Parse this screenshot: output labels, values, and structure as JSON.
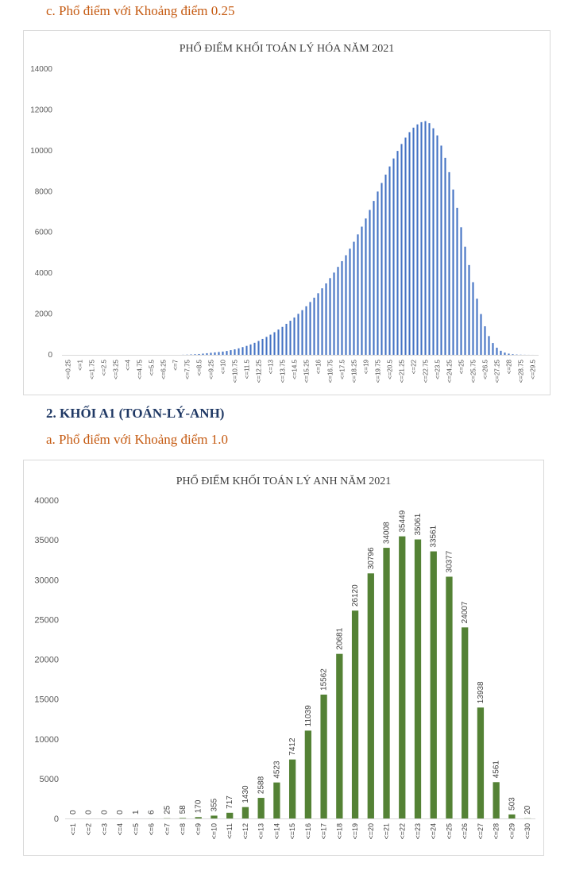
{
  "headings": {
    "c_title": "c. Phổ điểm với Khoảng điểm 0.25",
    "section_2": "2. KHỐI A1 (TOÁN-LÝ-ANH)",
    "a_title": "a. Phổ điểm với Khoảng điểm 1.0"
  },
  "colors": {
    "chart1_bar": "#4472c4",
    "chart2_bar": "#548235"
  },
  "chart_data": [
    {
      "type": "bar",
      "title": "PHỔ ĐIỂM KHỐI TOÁN LÝ HÓA NĂM 2021",
      "ylim": [
        0,
        14000
      ],
      "yticks": [
        0,
        2000,
        4000,
        6000,
        8000,
        10000,
        12000,
        14000
      ],
      "xtick_labels": [
        "<=0.25",
        "<=1",
        "<=1.75",
        "<=2.5",
        "<=3.25",
        "<=4",
        "<=4.75",
        "<=5.5",
        "<=6.25",
        "<=7",
        "<=7.75",
        "<=8.5",
        "<=9.25",
        "<=10",
        "<=10.75",
        "<=11.5",
        "<=12.25",
        "<=13",
        "<=13.75",
        "<=14.5",
        "<=15.25",
        "<=16",
        "<=16.75",
        "<=17.5",
        "<=18.25",
        "<=19",
        "<=19.75",
        "<=20.5",
        "<=21.25",
        "<=22",
        "<=22.75",
        "<=23.5",
        "<=24.25",
        "<=25",
        "<=25.75",
        "<=26.5",
        "<=27.25",
        "<=28",
        "<=28.75",
        "<=29.5"
      ],
      "categories": [
        "<=0.25",
        "<=0.5",
        "<=0.75",
        "<=1",
        "<=1.25",
        "<=1.5",
        "<=1.75",
        "<=2",
        "<=2.25",
        "<=2.5",
        "<=2.75",
        "<=3",
        "<=3.25",
        "<=3.5",
        "<=3.75",
        "<=4",
        "<=4.25",
        "<=4.5",
        "<=4.75",
        "<=5",
        "<=5.25",
        "<=5.5",
        "<=5.75",
        "<=6",
        "<=6.25",
        "<=6.5",
        "<=6.75",
        "<=7",
        "<=7.25",
        "<=7.5",
        "<=7.75",
        "<=8",
        "<=8.25",
        "<=8.5",
        "<=8.75",
        "<=9",
        "<=9.25",
        "<=9.5",
        "<=9.75",
        "<=10",
        "<=10.25",
        "<=10.5",
        "<=10.75",
        "<=11",
        "<=11.25",
        "<=11.5",
        "<=11.75",
        "<=12",
        "<=12.25",
        "<=12.5",
        "<=12.75",
        "<=13",
        "<=13.25",
        "<=13.5",
        "<=13.75",
        "<=14",
        "<=14.25",
        "<=14.5",
        "<=14.75",
        "<=15",
        "<=15.25",
        "<=15.5",
        "<=15.75",
        "<=16",
        "<=16.25",
        "<=16.5",
        "<=16.75",
        "<=17",
        "<=17.25",
        "<=17.5",
        "<=17.75",
        "<=18",
        "<=18.25",
        "<=18.5",
        "<=18.75",
        "<=19",
        "<=19.25",
        "<=19.5",
        "<=19.75",
        "<=20",
        "<=20.25",
        "<=20.5",
        "<=20.75",
        "<=21",
        "<=21.25",
        "<=21.5",
        "<=21.75",
        "<=22",
        "<=22.25",
        "<=22.5",
        "<=22.75",
        "<=23",
        "<=23.25",
        "<=23.5",
        "<=23.75",
        "<=24",
        "<=24.25",
        "<=24.5",
        "<=24.75",
        "<=25",
        "<=25.25",
        "<=25.5",
        "<=25.75",
        "<=26",
        "<=26.25",
        "<=26.5",
        "<=26.75",
        "<=27",
        "<=27.25",
        "<=27.5",
        "<=27.75",
        "<=28",
        "<=28.25",
        "<=28.5",
        "<=28.75",
        "<=29",
        "<=29.25",
        "<=29.5",
        "<=29.75",
        "<=30"
      ],
      "values": [
        0,
        0,
        0,
        0,
        0,
        0,
        0,
        0,
        0,
        0,
        0,
        0,
        0,
        0,
        0,
        0,
        0,
        0,
        0,
        0,
        0,
        0,
        0,
        0,
        0,
        0,
        0,
        0,
        0,
        0,
        5,
        10,
        20,
        30,
        40,
        60,
        80,
        100,
        120,
        140,
        160,
        190,
        230,
        270,
        320,
        380,
        440,
        510,
        590,
        680,
        780,
        880,
        990,
        1110,
        1240,
        1370,
        1520,
        1670,
        1830,
        2010,
        2190,
        2380,
        2590,
        2800,
        3020,
        3260,
        3500,
        3760,
        4030,
        4310,
        4590,
        4880,
        5200,
        5540,
        5900,
        6280,
        6680,
        7100,
        7540,
        8000,
        8420,
        8830,
        9230,
        9620,
        9990,
        10330,
        10640,
        10910,
        11130,
        11290,
        11400,
        11450,
        11350,
        11100,
        10750,
        10250,
        9650,
        8950,
        8100,
        7200,
        6250,
        5300,
        4400,
        3560,
        2750,
        2000,
        1400,
        920,
        580,
        350,
        200,
        110,
        60,
        30,
        15,
        8,
        4,
        2,
        1,
        0
      ]
    },
    {
      "type": "bar",
      "title": "PHỔ ĐIỂM KHỐI TOÁN LÝ ANH NĂM 2021",
      "ylim": [
        0,
        40000
      ],
      "yticks": [
        0,
        5000,
        10000,
        15000,
        20000,
        25000,
        30000,
        35000,
        40000
      ],
      "categories": [
        "<=1",
        "<=2",
        "<=3",
        "<=4",
        "<=5",
        "<=6",
        "<=7",
        "<=8",
        "<=9",
        "<=10",
        "<=11",
        "<=12",
        "<=13",
        "<=14",
        "<=15",
        "<=16",
        "<=17",
        "<=18",
        "<=19",
        "<=20",
        "<=21",
        "<=22",
        "<=23",
        "<=24",
        "<=25",
        "<=26",
        "<=27",
        "<=28",
        "<=29",
        "<=30"
      ],
      "values": [
        0,
        0,
        0,
        0,
        1,
        6,
        25,
        58,
        170,
        355,
        717,
        1430,
        2588,
        4523,
        7412,
        11039,
        15562,
        20681,
        26120,
        30796,
        34008,
        35449,
        35061,
        33561,
        30377,
        24007,
        13938,
        4561,
        503,
        20
      ],
      "data_labels": [
        "0",
        "0",
        "0",
        "0",
        "1",
        "6",
        "25",
        "58",
        "170",
        "355",
        "717",
        "1430",
        "2588",
        "4523",
        "7412",
        "11039",
        "15562",
        "20681",
        "26120",
        "30796",
        "34008",
        "35449",
        "35061",
        "33561",
        "30377",
        "24007",
        "13938",
        "4561",
        "503",
        "20"
      ]
    }
  ]
}
